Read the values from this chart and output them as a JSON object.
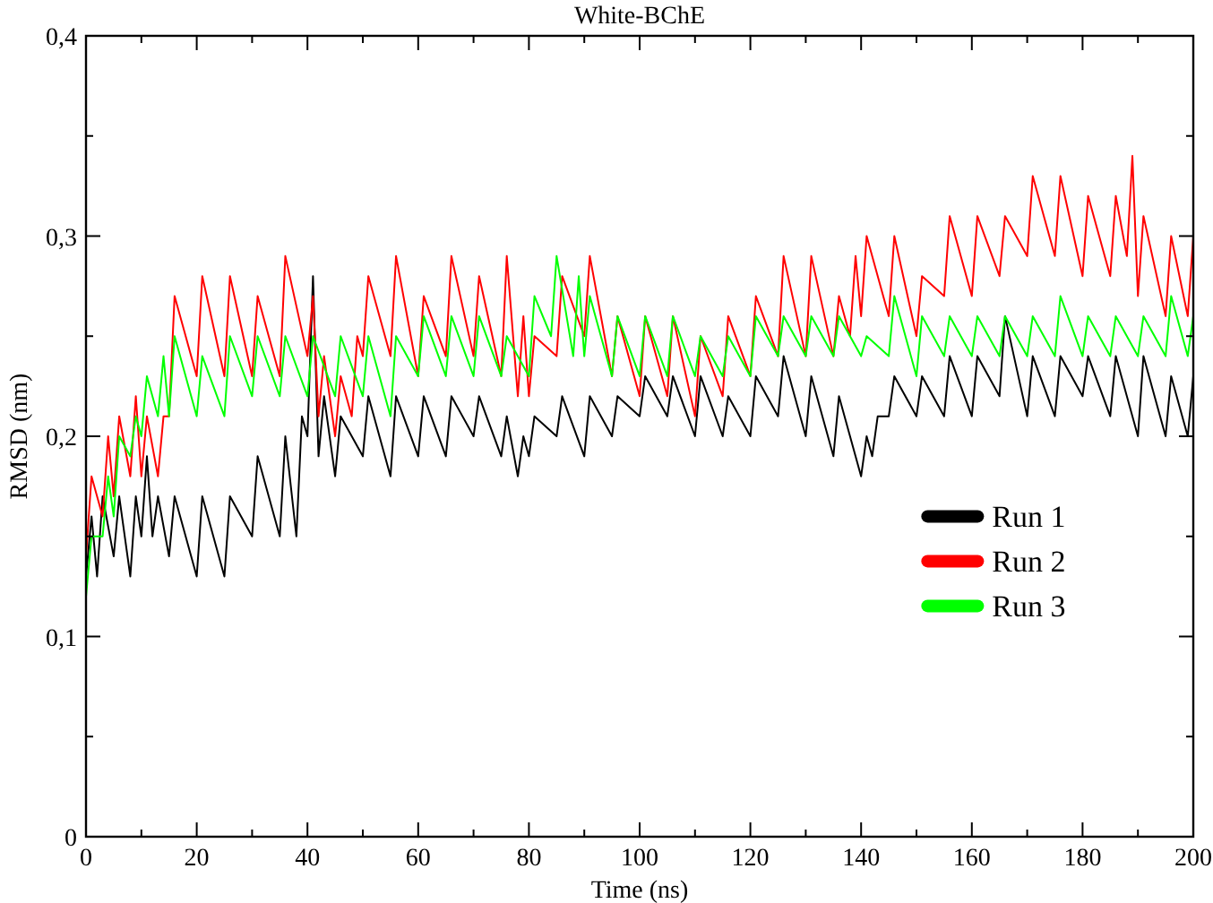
{
  "chart_data": {
    "type": "line",
    "title": "White-BChE",
    "xlabel": "Time (ns)",
    "ylabel": "RMSD (nm)",
    "xlim": [
      0,
      200
    ],
    "xticks": [
      0,
      {
        "value": 10,
        "label": null
      },
      20,
      {
        "value": 30,
        "label": null
      },
      40,
      {
        "value": 50,
        "label": null
      },
      60,
      {
        "value": 70,
        "label": null
      },
      80,
      {
        "value": 90,
        "label": null
      },
      100,
      {
        "value": 110,
        "label": null
      },
      120,
      {
        "value": 130,
        "label": null
      },
      140,
      {
        "value": 150,
        "label": null
      },
      160,
      {
        "value": 170,
        "label": null
      },
      180,
      {
        "value": 190,
        "label": null
      },
      200
    ],
    "ylim": [
      0,
      0.4
    ],
    "yticks": [
      0,
      {
        "value": 0.05,
        "label": null
      },
      {
        "value": 0.1,
        "label": "0,1"
      },
      {
        "value": 0.15,
        "label": null
      },
      {
        "value": 0.2,
        "label": "0,2"
      },
      {
        "value": 0.25,
        "label": null
      },
      {
        "value": 0.3,
        "label": "0,3"
      },
      {
        "value": 0.35,
        "label": null
      },
      {
        "value": 0.4,
        "label": "0,4"
      }
    ],
    "grid": false,
    "legend": "right",
    "marker": "none",
    "line_style": "solid",
    "series": [
      {
        "name": "Run 1",
        "color": "#000000",
        "x": [
          0,
          1,
          2,
          3,
          5,
          6,
          8,
          9,
          10,
          11,
          12,
          13,
          15,
          16,
          20,
          21,
          25,
          26,
          30,
          31,
          35,
          36,
          38,
          39,
          40,
          41,
          42,
          43,
          45,
          46,
          50,
          51,
          55,
          56,
          60,
          61,
          65,
          66,
          70,
          71,
          75,
          76,
          78,
          79,
          80,
          81,
          85,
          86,
          90,
          91,
          95,
          96,
          100,
          101,
          105,
          106,
          110,
          111,
          115,
          116,
          120,
          121,
          125,
          126,
          130,
          131,
          135,
          136,
          140,
          141,
          142,
          143,
          145,
          146,
          150,
          151,
          155,
          156,
          160,
          161,
          165,
          166,
          170,
          171,
          175,
          176,
          180,
          181,
          185,
          186,
          190,
          191,
          195,
          196,
          199,
          200
        ],
        "values": [
          0.13,
          0.16,
          0.13,
          0.17,
          0.14,
          0.17,
          0.13,
          0.17,
          0.15,
          0.19,
          0.15,
          0.17,
          0.14,
          0.17,
          0.13,
          0.17,
          0.13,
          0.17,
          0.15,
          0.19,
          0.15,
          0.2,
          0.15,
          0.21,
          0.2,
          0.28,
          0.19,
          0.22,
          0.18,
          0.21,
          0.19,
          0.22,
          0.18,
          0.22,
          0.19,
          0.22,
          0.19,
          0.22,
          0.2,
          0.22,
          0.19,
          0.21,
          0.18,
          0.2,
          0.19,
          0.21,
          0.2,
          0.22,
          0.19,
          0.22,
          0.2,
          0.22,
          0.21,
          0.23,
          0.21,
          0.23,
          0.2,
          0.23,
          0.2,
          0.22,
          0.2,
          0.23,
          0.21,
          0.24,
          0.2,
          0.23,
          0.19,
          0.22,
          0.18,
          0.2,
          0.19,
          0.21,
          0.21,
          0.23,
          0.21,
          0.23,
          0.21,
          0.24,
          0.21,
          0.24,
          0.22,
          0.26,
          0.21,
          0.24,
          0.21,
          0.24,
          0.22,
          0.24,
          0.21,
          0.24,
          0.2,
          0.24,
          0.2,
          0.23,
          0.2,
          0.23
        ]
      },
      {
        "name": "Run 2",
        "color": "#ff0000",
        "x": [
          0,
          1,
          3,
          4,
          5,
          6,
          8,
          9,
          10,
          11,
          13,
          14,
          15,
          16,
          20,
          21,
          25,
          26,
          30,
          31,
          35,
          36,
          40,
          41,
          42,
          43,
          45,
          46,
          48,
          49,
          50,
          51,
          55,
          56,
          60,
          61,
          65,
          66,
          70,
          71,
          75,
          76,
          78,
          79,
          80,
          81,
          85,
          86,
          90,
          91,
          95,
          96,
          100,
          101,
          105,
          106,
          110,
          111,
          115,
          116,
          120,
          121,
          125,
          126,
          130,
          131,
          135,
          136,
          138,
          139,
          140,
          141,
          145,
          146,
          150,
          151,
          155,
          156,
          160,
          161,
          165,
          166,
          170,
          171,
          175,
          176,
          180,
          181,
          185,
          186,
          188,
          189,
          190,
          191,
          195,
          196,
          199,
          200
        ],
        "values": [
          0.14,
          0.18,
          0.16,
          0.2,
          0.17,
          0.21,
          0.18,
          0.22,
          0.18,
          0.21,
          0.18,
          0.21,
          0.21,
          0.27,
          0.23,
          0.28,
          0.23,
          0.28,
          0.23,
          0.27,
          0.23,
          0.29,
          0.24,
          0.27,
          0.21,
          0.24,
          0.2,
          0.23,
          0.21,
          0.25,
          0.24,
          0.28,
          0.24,
          0.29,
          0.23,
          0.27,
          0.24,
          0.29,
          0.24,
          0.28,
          0.23,
          0.29,
          0.22,
          0.26,
          0.22,
          0.25,
          0.24,
          0.28,
          0.25,
          0.29,
          0.23,
          0.26,
          0.22,
          0.26,
          0.22,
          0.26,
          0.21,
          0.25,
          0.22,
          0.26,
          0.23,
          0.27,
          0.24,
          0.29,
          0.24,
          0.29,
          0.24,
          0.27,
          0.25,
          0.29,
          0.26,
          0.3,
          0.26,
          0.3,
          0.25,
          0.28,
          0.27,
          0.31,
          0.27,
          0.31,
          0.28,
          0.31,
          0.29,
          0.33,
          0.29,
          0.33,
          0.28,
          0.32,
          0.28,
          0.32,
          0.29,
          0.34,
          0.27,
          0.31,
          0.26,
          0.3,
          0.26,
          0.3
        ]
      },
      {
        "name": "Run 3",
        "color": "#00ff00",
        "x": [
          0,
          1,
          3,
          4,
          5,
          6,
          8,
          9,
          10,
          11,
          13,
          14,
          15,
          16,
          20,
          21,
          25,
          26,
          30,
          31,
          35,
          36,
          40,
          41,
          45,
          46,
          50,
          51,
          55,
          56,
          60,
          61,
          65,
          66,
          70,
          71,
          75,
          76,
          80,
          81,
          84,
          85,
          88,
          89,
          90,
          91,
          95,
          96,
          100,
          101,
          105,
          106,
          110,
          111,
          115,
          116,
          120,
          121,
          125,
          126,
          130,
          131,
          135,
          136,
          140,
          141,
          145,
          146,
          150,
          151,
          155,
          156,
          160,
          161,
          165,
          166,
          170,
          171,
          175,
          176,
          180,
          181,
          185,
          186,
          190,
          191,
          195,
          196,
          199,
          200
        ],
        "values": [
          0.12,
          0.15,
          0.15,
          0.18,
          0.16,
          0.2,
          0.19,
          0.21,
          0.2,
          0.23,
          0.21,
          0.24,
          0.21,
          0.25,
          0.21,
          0.24,
          0.21,
          0.25,
          0.22,
          0.25,
          0.22,
          0.25,
          0.22,
          0.25,
          0.22,
          0.25,
          0.22,
          0.25,
          0.21,
          0.25,
          0.23,
          0.26,
          0.23,
          0.26,
          0.23,
          0.26,
          0.23,
          0.25,
          0.23,
          0.27,
          0.25,
          0.29,
          0.24,
          0.28,
          0.24,
          0.27,
          0.23,
          0.26,
          0.23,
          0.26,
          0.23,
          0.26,
          0.23,
          0.25,
          0.23,
          0.25,
          0.23,
          0.26,
          0.24,
          0.26,
          0.24,
          0.26,
          0.24,
          0.26,
          0.24,
          0.25,
          0.24,
          0.27,
          0.23,
          0.26,
          0.24,
          0.26,
          0.24,
          0.26,
          0.24,
          0.26,
          0.24,
          0.26,
          0.24,
          0.27,
          0.24,
          0.26,
          0.24,
          0.26,
          0.24,
          0.26,
          0.24,
          0.27,
          0.24,
          0.26
        ]
      }
    ]
  }
}
